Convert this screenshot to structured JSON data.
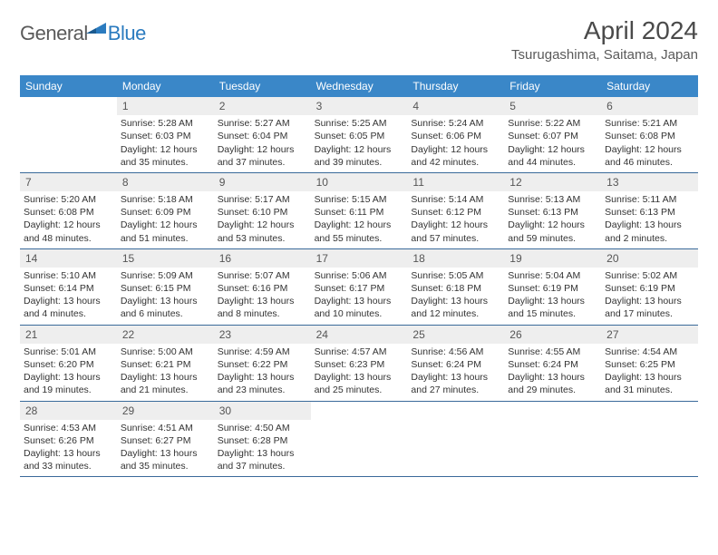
{
  "logo": {
    "general": "General",
    "blue": "Blue"
  },
  "title": "April 2024",
  "location": "Tsurugashima, Saitama, Japan",
  "colors": {
    "header_bg": "#3a87c8",
    "header_text": "#ffffff",
    "daynum_bg": "#eeeeee",
    "border": "#3a6a9a",
    "logo_blue": "#2b7bbf",
    "logo_gray": "#5a5a5a"
  },
  "weekdays": [
    "Sunday",
    "Monday",
    "Tuesday",
    "Wednesday",
    "Thursday",
    "Friday",
    "Saturday"
  ],
  "weeks": [
    [
      null,
      {
        "n": "1",
        "sr": "5:28 AM",
        "ss": "6:03 PM",
        "dl": "12 hours and 35 minutes."
      },
      {
        "n": "2",
        "sr": "5:27 AM",
        "ss": "6:04 PM",
        "dl": "12 hours and 37 minutes."
      },
      {
        "n": "3",
        "sr": "5:25 AM",
        "ss": "6:05 PM",
        "dl": "12 hours and 39 minutes."
      },
      {
        "n": "4",
        "sr": "5:24 AM",
        "ss": "6:06 PM",
        "dl": "12 hours and 42 minutes."
      },
      {
        "n": "5",
        "sr": "5:22 AM",
        "ss": "6:07 PM",
        "dl": "12 hours and 44 minutes."
      },
      {
        "n": "6",
        "sr": "5:21 AM",
        "ss": "6:08 PM",
        "dl": "12 hours and 46 minutes."
      }
    ],
    [
      {
        "n": "7",
        "sr": "5:20 AM",
        "ss": "6:08 PM",
        "dl": "12 hours and 48 minutes."
      },
      {
        "n": "8",
        "sr": "5:18 AM",
        "ss": "6:09 PM",
        "dl": "12 hours and 51 minutes."
      },
      {
        "n": "9",
        "sr": "5:17 AM",
        "ss": "6:10 PM",
        "dl": "12 hours and 53 minutes."
      },
      {
        "n": "10",
        "sr": "5:15 AM",
        "ss": "6:11 PM",
        "dl": "12 hours and 55 minutes."
      },
      {
        "n": "11",
        "sr": "5:14 AM",
        "ss": "6:12 PM",
        "dl": "12 hours and 57 minutes."
      },
      {
        "n": "12",
        "sr": "5:13 AM",
        "ss": "6:13 PM",
        "dl": "12 hours and 59 minutes."
      },
      {
        "n": "13",
        "sr": "5:11 AM",
        "ss": "6:13 PM",
        "dl": "13 hours and 2 minutes."
      }
    ],
    [
      {
        "n": "14",
        "sr": "5:10 AM",
        "ss": "6:14 PM",
        "dl": "13 hours and 4 minutes."
      },
      {
        "n": "15",
        "sr": "5:09 AM",
        "ss": "6:15 PM",
        "dl": "13 hours and 6 minutes."
      },
      {
        "n": "16",
        "sr": "5:07 AM",
        "ss": "6:16 PM",
        "dl": "13 hours and 8 minutes."
      },
      {
        "n": "17",
        "sr": "5:06 AM",
        "ss": "6:17 PM",
        "dl": "13 hours and 10 minutes."
      },
      {
        "n": "18",
        "sr": "5:05 AM",
        "ss": "6:18 PM",
        "dl": "13 hours and 12 minutes."
      },
      {
        "n": "19",
        "sr": "5:04 AM",
        "ss": "6:19 PM",
        "dl": "13 hours and 15 minutes."
      },
      {
        "n": "20",
        "sr": "5:02 AM",
        "ss": "6:19 PM",
        "dl": "13 hours and 17 minutes."
      }
    ],
    [
      {
        "n": "21",
        "sr": "5:01 AM",
        "ss": "6:20 PM",
        "dl": "13 hours and 19 minutes."
      },
      {
        "n": "22",
        "sr": "5:00 AM",
        "ss": "6:21 PM",
        "dl": "13 hours and 21 minutes."
      },
      {
        "n": "23",
        "sr": "4:59 AM",
        "ss": "6:22 PM",
        "dl": "13 hours and 23 minutes."
      },
      {
        "n": "24",
        "sr": "4:57 AM",
        "ss": "6:23 PM",
        "dl": "13 hours and 25 minutes."
      },
      {
        "n": "25",
        "sr": "4:56 AM",
        "ss": "6:24 PM",
        "dl": "13 hours and 27 minutes."
      },
      {
        "n": "26",
        "sr": "4:55 AM",
        "ss": "6:24 PM",
        "dl": "13 hours and 29 minutes."
      },
      {
        "n": "27",
        "sr": "4:54 AM",
        "ss": "6:25 PM",
        "dl": "13 hours and 31 minutes."
      }
    ],
    [
      {
        "n": "28",
        "sr": "4:53 AM",
        "ss": "6:26 PM",
        "dl": "13 hours and 33 minutes."
      },
      {
        "n": "29",
        "sr": "4:51 AM",
        "ss": "6:27 PM",
        "dl": "13 hours and 35 minutes."
      },
      {
        "n": "30",
        "sr": "4:50 AM",
        "ss": "6:28 PM",
        "dl": "13 hours and 37 minutes."
      },
      null,
      null,
      null,
      null
    ]
  ],
  "labels": {
    "sunrise": "Sunrise:",
    "sunset": "Sunset:",
    "daylight": "Daylight:"
  }
}
